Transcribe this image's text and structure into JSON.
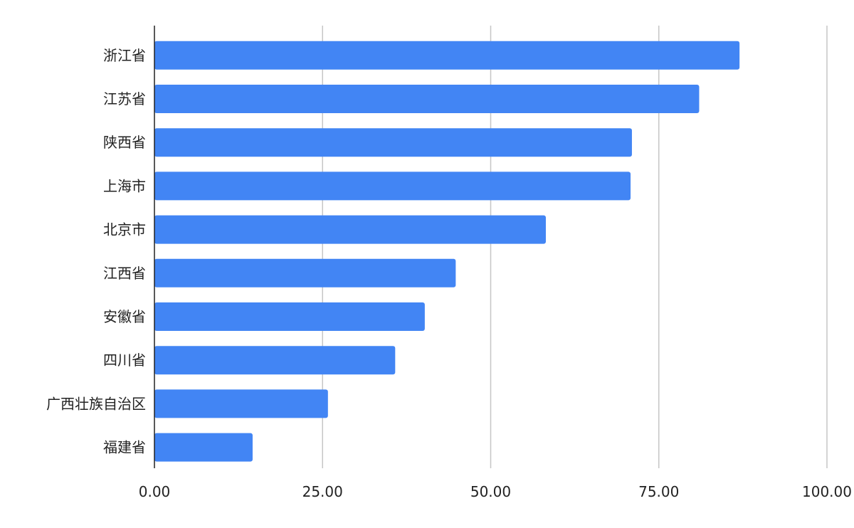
{
  "chart_data": {
    "type": "bar",
    "orientation": "horizontal",
    "title": "",
    "xlabel": "",
    "ylabel": "",
    "categories": [
      "浙江省",
      "江苏省",
      "陕西省",
      "上海市",
      "北京市",
      "江西省",
      "安徽省",
      "四川省",
      "广西壮族自治区",
      "福建省"
    ],
    "values": [
      87.0,
      81.0,
      71.0,
      70.8,
      58.2,
      44.8,
      40.2,
      35.8,
      25.8,
      14.6
    ],
    "xlim": [
      0,
      100
    ],
    "x_ticks": [
      "0.00",
      "25.00",
      "50.00",
      "75.00",
      "100.00"
    ],
    "x_tick_values": [
      0,
      25,
      50,
      75,
      100
    ],
    "grid": "vertical",
    "legend": "none",
    "bar_color": "#4285F4"
  }
}
